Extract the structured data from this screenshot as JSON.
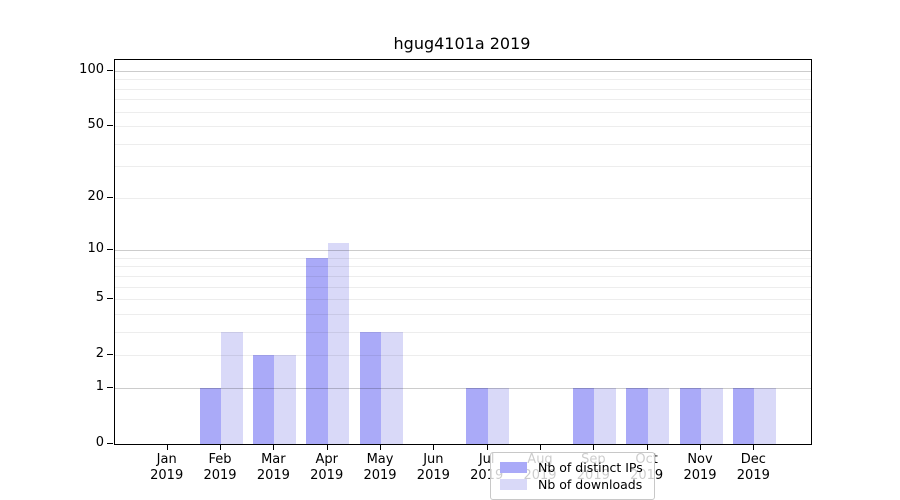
{
  "title": "hgug4101a 2019",
  "chart_data": {
    "type": "bar",
    "title": "hgug4101a 2019",
    "categories": [
      "Jan",
      "Feb",
      "Mar",
      "Apr",
      "May",
      "Jun",
      "Jul",
      "Aug",
      "Sep",
      "Oct",
      "Nov",
      "Dec"
    ],
    "x_year": "2019",
    "series": [
      {
        "name": "Nb of distinct IPs",
        "color": "#aaaaf8",
        "values": [
          0,
          1,
          2,
          9,
          3,
          0,
          1,
          0,
          1,
          1,
          1,
          1
        ]
      },
      {
        "name": "Nb of downloads",
        "color": "#d9d9f8",
        "values": [
          0,
          3,
          2,
          11,
          3,
          0,
          1,
          0,
          1,
          1,
          1,
          1
        ]
      }
    ],
    "yticks": [
      0,
      1,
      2,
      5,
      10,
      20,
      50,
      100
    ],
    "minor_gridlines": [
      2,
      3,
      4,
      5,
      6,
      7,
      8,
      9,
      20,
      30,
      40,
      50,
      60,
      70,
      80,
      90
    ],
    "major_gridlines": [
      1,
      10,
      100
    ],
    "scale": "log1p",
    "ylim": [
      0,
      110
    ],
    "xlabel": "",
    "ylabel": "",
    "grid": true,
    "legend_position": "bottom-center"
  }
}
